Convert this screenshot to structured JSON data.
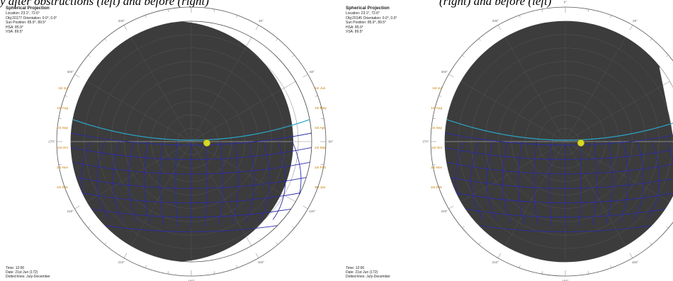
{
  "caption": {
    "left_fragment": "y after obstructions (left) and before (right)",
    "right_fragment": "(right) and before (left)"
  },
  "panels": [
    {
      "title": "Spherical Projection",
      "location": "Location: 23.1°, 72.6°",
      "object": "Obj:20177 Orientation: 0.0°, 0.0°",
      "sun_position": "Sun Position: 85.9°, 89.5°",
      "hsa": "HSA: 85.9°",
      "vsa": "VSA: 89.5°",
      "time": "Time: 12:00",
      "date": "Date: 21st Jun (172)",
      "dotted": "Dotted lines: July-December"
    },
    {
      "title": "Spherical Projection",
      "location": "Location: 23.1°, 72.6°",
      "object": "Obj:20145 Orientation: 0.0°, 0.0°",
      "sun_position": "Sun Position: 85.9°, 89.5°",
      "hsa": "HSA: 85.9°",
      "vsa": "VSA: 89.5°",
      "time": "Time: 12:00",
      "date": "Date: 21st Jun (172)",
      "dotted": "Dotted lines: July-December"
    }
  ],
  "months_left": [
    "1st Jul",
    "1st Aug",
    "1st Sep",
    "1st Oct",
    "1st Nov",
    "1st Dec"
  ],
  "months_right": [
    "1st Jun",
    "1st May",
    "1st Apr",
    "1st Mar",
    "1st Feb",
    "1st Jan"
  ],
  "compass": [
    "0°",
    "30°",
    "60°",
    "90°",
    "120°",
    "150°",
    "180°",
    "210°",
    "240°",
    "270°",
    "300°",
    "330°"
  ],
  "colors": {
    "obstruction": "#3c3c3c",
    "sunpath": "#2b2ba8",
    "horizon": "#2aa6c8",
    "sun": "#d8d82a",
    "month_label": "#c57a00"
  }
}
